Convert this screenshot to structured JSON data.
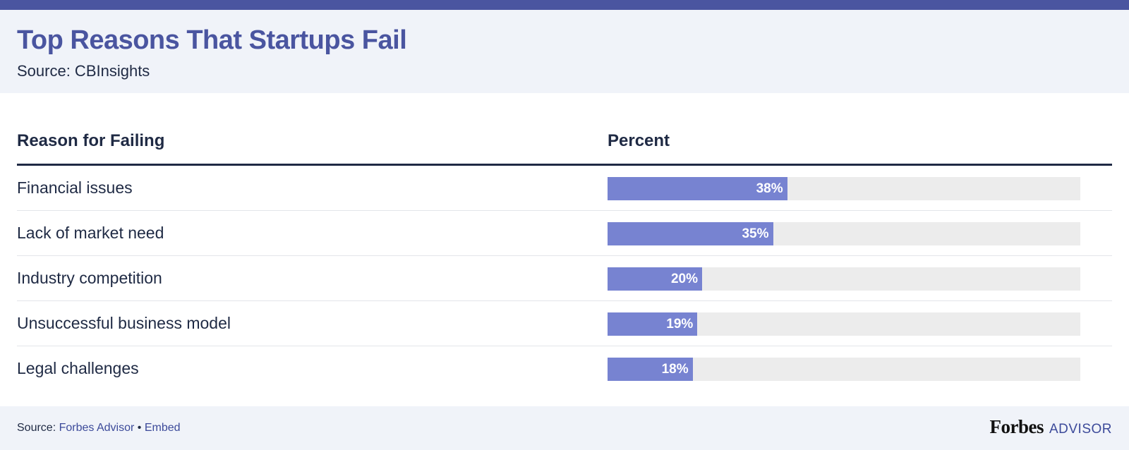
{
  "header": {
    "title": "Top Reasons That Startups Fail",
    "subtitle": "Source: CBInsights"
  },
  "table": {
    "col_reason": "Reason for Failing",
    "col_percent": "Percent"
  },
  "chart_data": {
    "type": "bar",
    "orientation": "horizontal",
    "categories": [
      "Financial issues",
      "Lack of market need",
      "Industry competition",
      "Unsuccessful business model",
      "Legal challenges"
    ],
    "values": [
      38,
      35,
      20,
      19,
      18
    ],
    "value_labels": [
      "38%",
      "35%",
      "20%",
      "19%",
      "18%"
    ],
    "xlim": [
      0,
      100
    ],
    "colors": {
      "bar": "#7783d1",
      "track": "#ececec",
      "accent": "#4a55a0"
    }
  },
  "footer": {
    "source_prefix": "Source: ",
    "source_link": "Forbes Advisor",
    "separator": " • ",
    "embed_link": "Embed",
    "logo_brand": "Forbes",
    "logo_suffix": "ADVISOR"
  }
}
